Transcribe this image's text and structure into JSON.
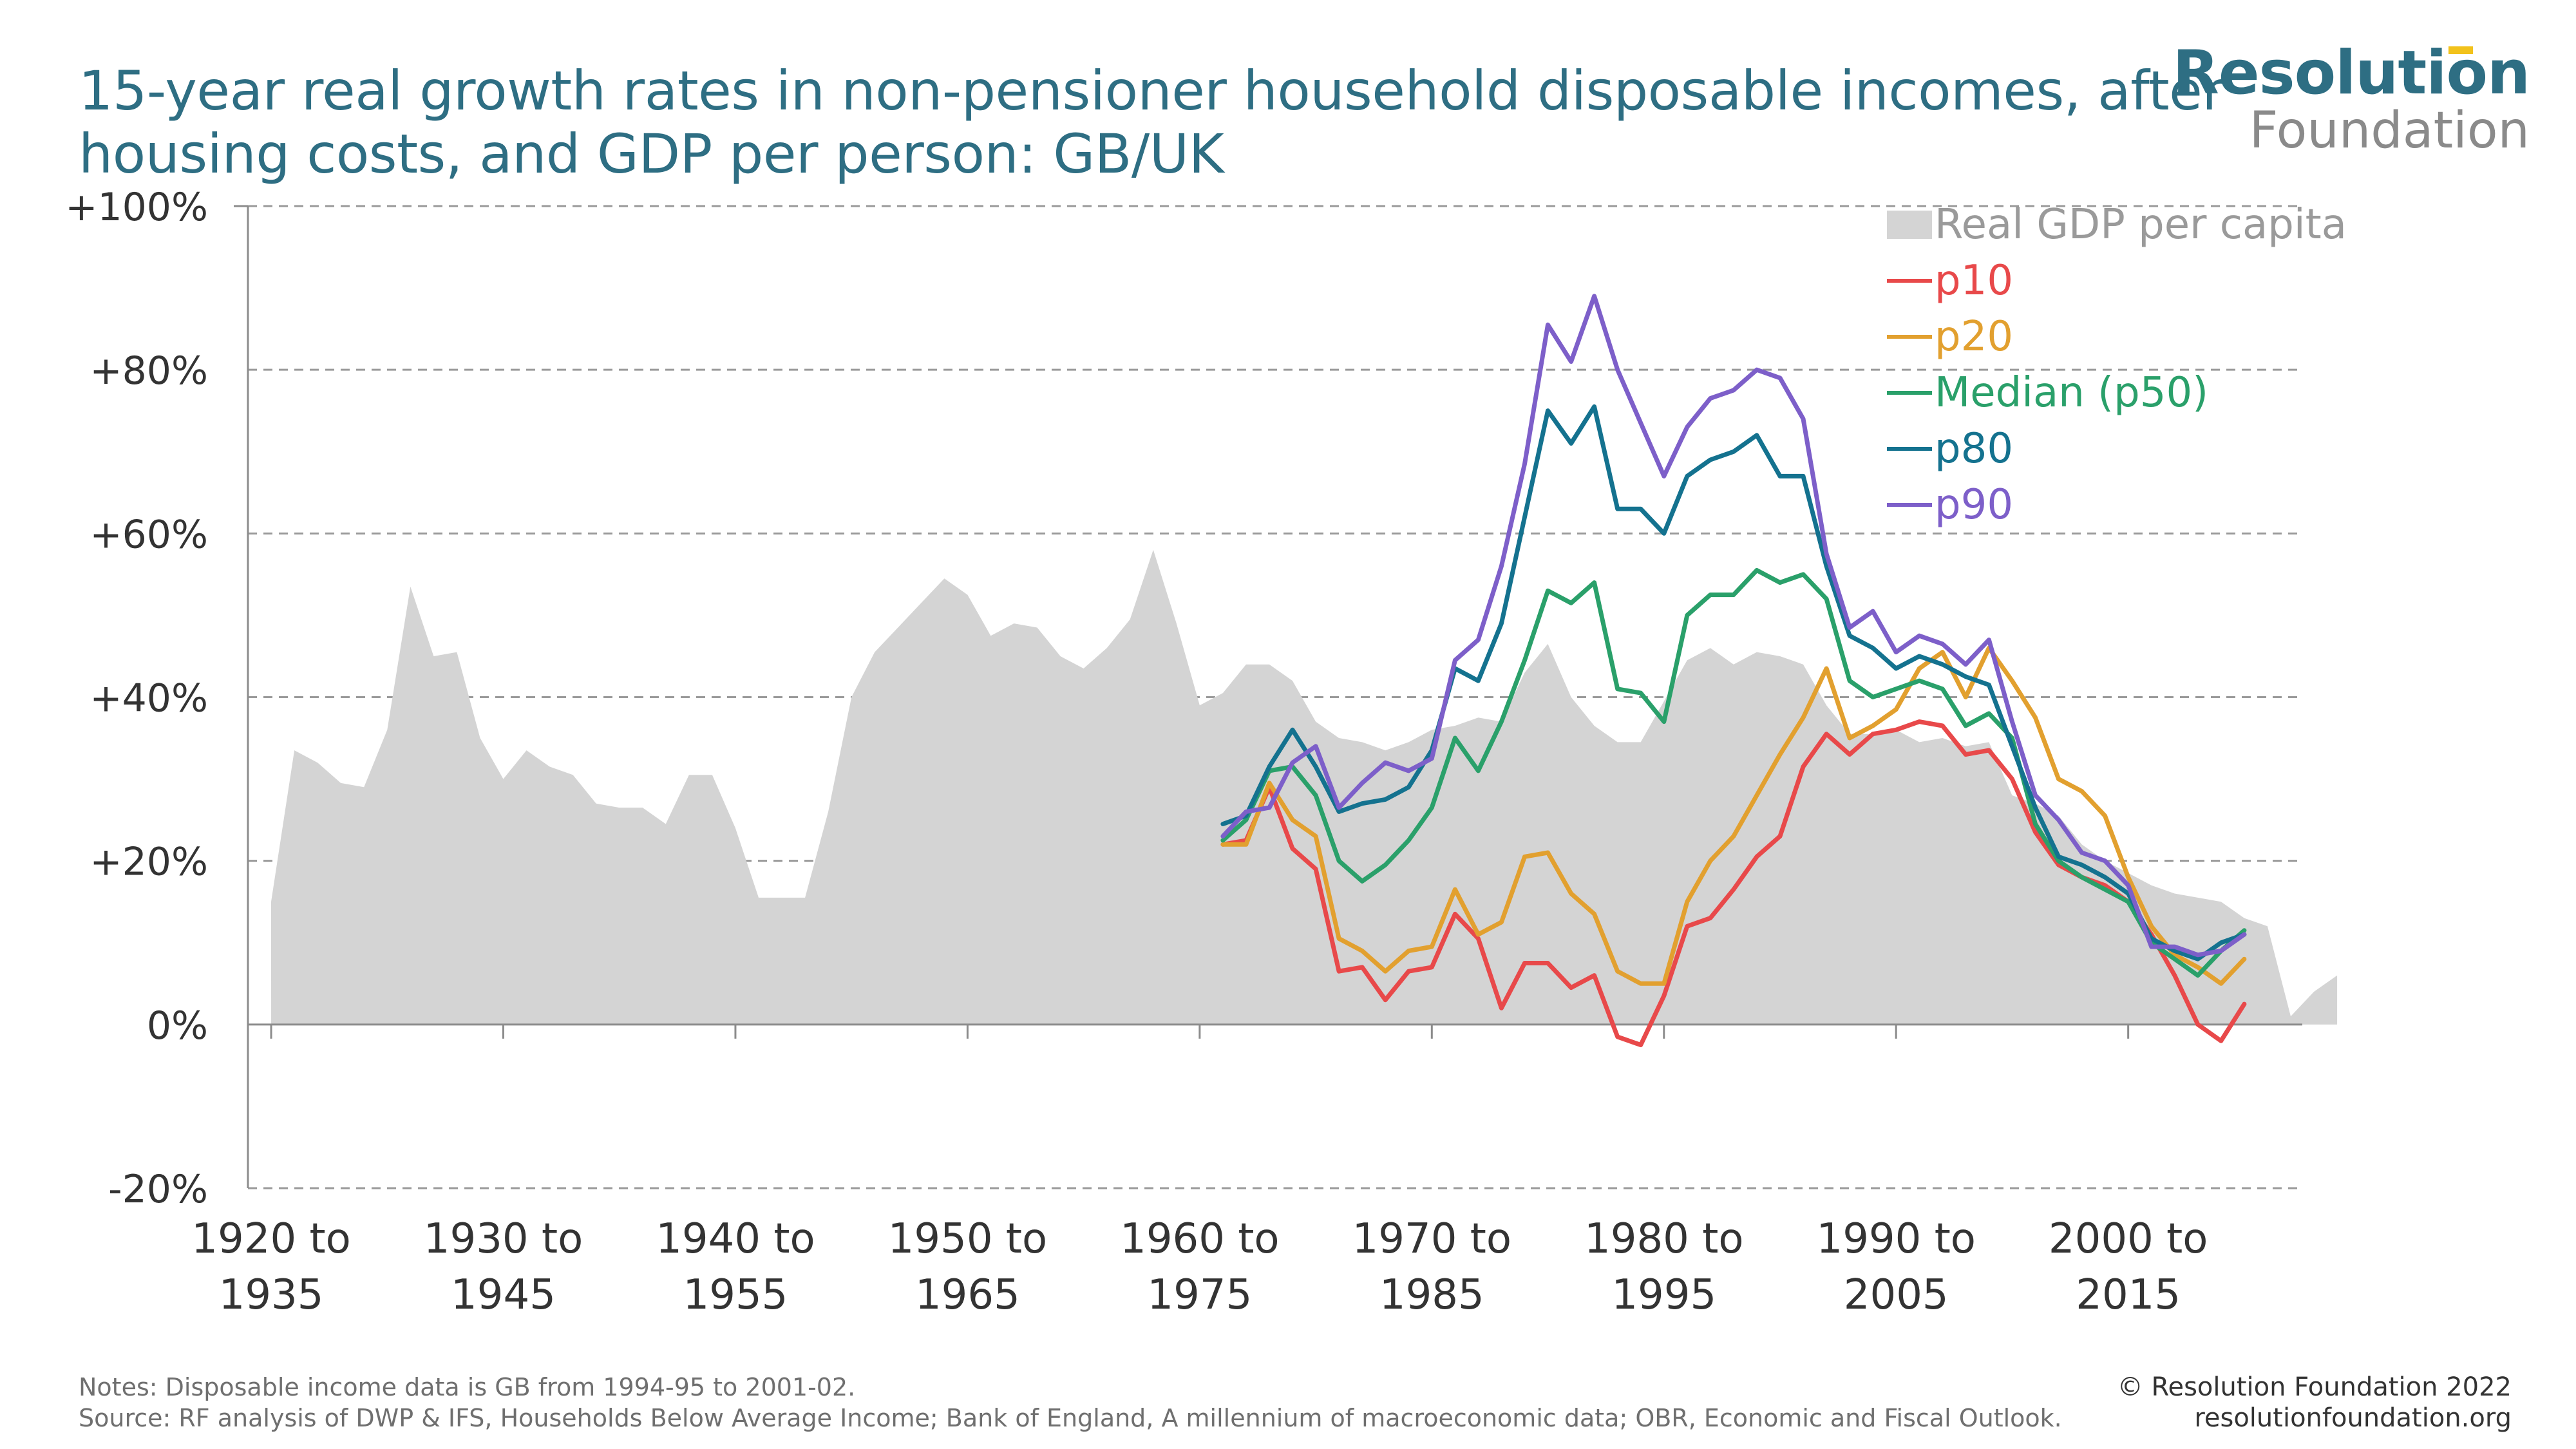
{
  "title": "15-year real growth rates in non-pensioner household disposable incomes, after housing costs, and GDP per person: GB/UK",
  "logo": {
    "main": "Resolution",
    "sub": "Foundation",
    "accent": "#f2c21b"
  },
  "notes": "Notes: Disposable income data is GB from 1994-95 to 2001-02.",
  "source": "Source: RF analysis of DWP & IFS, Households Below Average Income; Bank of England, A millennium of macroeconomic data; OBR, Economic and Fiscal Outlook.",
  "credit": {
    "line1": "© Resolution Foundation 2022",
    "line2": "resolutionfoundation.org"
  },
  "chart_data": {
    "type": "line",
    "x_unit": "start year of 15-year window",
    "xlim": [
      1919,
      2007.5
    ],
    "ylim": [
      -20,
      100
    ],
    "yticks": [
      {
        "value": 100,
        "label": "+100%"
      },
      {
        "value": 80,
        "label": "+80%"
      },
      {
        "value": 60,
        "label": "+60%"
      },
      {
        "value": 40,
        "label": "+40%"
      },
      {
        "value": 20,
        "label": "+20%"
      },
      {
        "value": 0,
        "label": "0%"
      },
      {
        "value": -20,
        "label": "-20%"
      }
    ],
    "xticks": [
      {
        "value": 1920,
        "line1": "1920 to",
        "line2": "1935"
      },
      {
        "value": 1930,
        "line1": "1930 to",
        "line2": "1945"
      },
      {
        "value": 1940,
        "line1": "1940 to",
        "line2": "1955"
      },
      {
        "value": 1950,
        "line1": "1950 to",
        "line2": "1965"
      },
      {
        "value": 1960,
        "line1": "1960 to",
        "line2": "1975"
      },
      {
        "value": 1970,
        "line1": "1970 to",
        "line2": "1985"
      },
      {
        "value": 1980,
        "line1": "1980 to",
        "line2": "1995"
      },
      {
        "value": 1990,
        "line1": "1990 to",
        "line2": "2005"
      },
      {
        "value": 2000,
        "line1": "2000 to",
        "line2": "2015"
      }
    ],
    "grid": "horizontal-dashed",
    "legend_position": "top-right",
    "area": {
      "name": "Real GDP per capita",
      "color": "#d4d4d4",
      "x_start": 1920,
      "values": [
        15,
        33.5,
        32,
        29.5,
        29,
        36,
        53.5,
        45,
        45.5,
        35,
        30,
        33.5,
        31.5,
        30.5,
        27,
        26.5,
        26.5,
        24.5,
        30.5,
        30.5,
        24,
        15.5,
        15.5,
        15.5,
        26,
        40,
        45.5,
        48.5,
        51.5,
        54.5,
        52.5,
        47.5,
        49,
        48.5,
        45,
        43.5,
        46,
        49.5,
        58,
        49,
        39,
        40.5,
        44,
        44,
        42,
        37,
        35,
        34.5,
        33.5,
        34.5,
        36,
        36.5,
        37.5,
        37,
        43,
        46.5,
        40,
        36.5,
        34.5,
        34.5,
        39.5,
        44.5,
        46,
        44,
        45.5,
        45,
        44,
        39,
        35.5,
        35.5,
        36,
        34.5,
        35,
        34,
        34.5,
        28,
        27,
        25.5,
        22,
        20,
        18.5,
        17,
        16,
        15.5,
        15,
        13,
        12,
        1,
        4,
        6
      ]
    },
    "series": [
      {
        "name": "p10",
        "color": "#e8494a",
        "x_start": 1961,
        "values": [
          22,
          22.5,
          29,
          21.5,
          19,
          6.5,
          7,
          3,
          6.5,
          7,
          13.5,
          10.5,
          2,
          7.5,
          7.5,
          4.5,
          6,
          -1.5,
          -2.5,
          3.5,
          12,
          13,
          16.5,
          20.5,
          23,
          31.5,
          35.5,
          33,
          35.5,
          36,
          37,
          36.5,
          33,
          33.5,
          30,
          23.5,
          19.5,
          18,
          17,
          15,
          11,
          6,
          0,
          -2,
          2.5
        ]
      },
      {
        "name": "p20",
        "color": "#e2a02f",
        "x_start": 1961,
        "values": [
          22,
          22,
          29.5,
          25,
          23,
          10.5,
          9,
          6.5,
          9,
          9.5,
          16.5,
          11,
          12.5,
          20.5,
          21,
          16,
          13.5,
          6.5,
          5,
          5,
          15,
          20,
          23,
          28,
          33,
          37.5,
          43.5,
          35,
          36.5,
          38.5,
          43.5,
          45.5,
          40,
          46,
          42,
          37.5,
          30,
          28.5,
          25.5,
          18,
          12,
          8.5,
          7,
          5,
          8
        ]
      },
      {
        "name": "Median (p50)",
        "color": "#2aa06a",
        "x_start": 1961,
        "values": [
          22.5,
          25,
          31,
          31.5,
          28,
          20,
          17.5,
          19.5,
          22.5,
          26.5,
          35,
          31,
          37,
          44.5,
          53,
          51.5,
          54,
          41,
          40.5,
          37,
          50,
          52.5,
          52.5,
          55.5,
          54,
          55,
          52,
          42,
          40,
          41,
          42,
          41,
          36.5,
          38,
          35,
          24.5,
          20,
          18,
          16.5,
          15,
          10,
          8,
          6,
          9,
          11.5
        ]
      },
      {
        "name": "p80",
        "color": "#14728f",
        "x_start": 1961,
        "values": [
          24.5,
          25.5,
          31.5,
          36,
          31.5,
          26,
          27,
          27.5,
          29,
          33.5,
          43.5,
          42,
          49,
          62,
          75,
          71,
          75.5,
          63,
          63,
          60,
          67,
          69,
          70,
          72,
          67,
          67,
          56,
          47.5,
          46,
          43.5,
          45,
          44,
          42.5,
          41.5,
          34,
          26.5,
          20.5,
          19.5,
          18,
          16,
          10.5,
          9,
          8,
          10,
          11
        ]
      },
      {
        "name": "p90",
        "color": "#7d5fc9",
        "x_start": 1961,
        "values": [
          23,
          26,
          26.5,
          32,
          34,
          26.5,
          29.5,
          32,
          31,
          32.5,
          44.5,
          47,
          56,
          68.5,
          85.5,
          81,
          89,
          80,
          73.5,
          67,
          73,
          76.5,
          77.5,
          80,
          79,
          74,
          57.5,
          48.5,
          50.5,
          45.5,
          47.5,
          46.5,
          44,
          47,
          37,
          28,
          25,
          21,
          20,
          17,
          9.5,
          9.5,
          8.5,
          9,
          11
        ]
      }
    ]
  }
}
